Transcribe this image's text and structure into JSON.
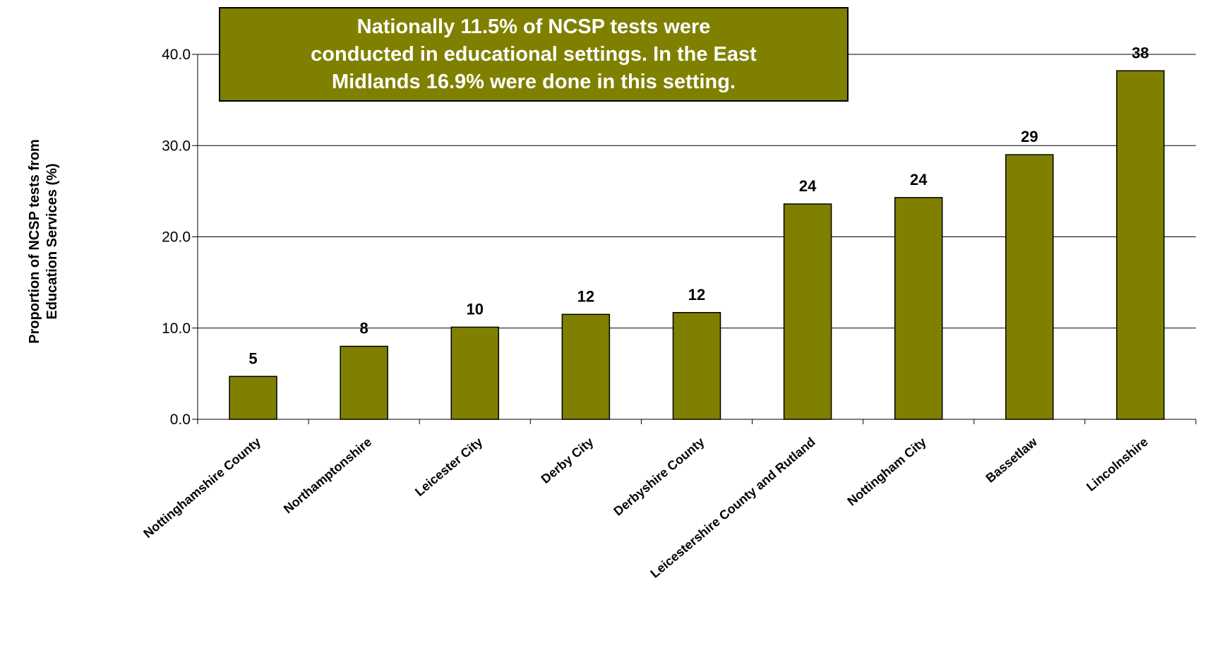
{
  "chart_data": {
    "type": "bar",
    "title": "",
    "xlabel": "",
    "ylabel": [
      "Proportion of NCSP tests from",
      "Education Services (%)"
    ],
    "annotation": [
      "Nationally  11.5% of NCSP tests were",
      "conducted in  educational settings.  In the East",
      "Midlands 16.9% were done in this setting."
    ],
    "categories": [
      "Nottinghamshire County",
      "Northamptonshire",
      "Leicester City",
      "Derby City",
      "Derbyshire County",
      "Leicestershire County and Rutland",
      "Nottingham City",
      "Bassetlaw",
      "Lincolnshire"
    ],
    "values": [
      4.7,
      8.0,
      10.1,
      11.5,
      11.7,
      23.6,
      24.3,
      29.0,
      38.2
    ],
    "data_labels": [
      "5",
      "8",
      "10",
      "12",
      "12",
      "24",
      "24",
      "29",
      "38"
    ],
    "yticks": [
      "0.0",
      "10.0",
      "20.0",
      "30.0",
      "40.0"
    ],
    "ylim": [
      0,
      40
    ],
    "grid": true,
    "colors": {
      "bar": "#808000",
      "annotation_fill": "#808000",
      "annotation_text": "#ffffff"
    }
  }
}
